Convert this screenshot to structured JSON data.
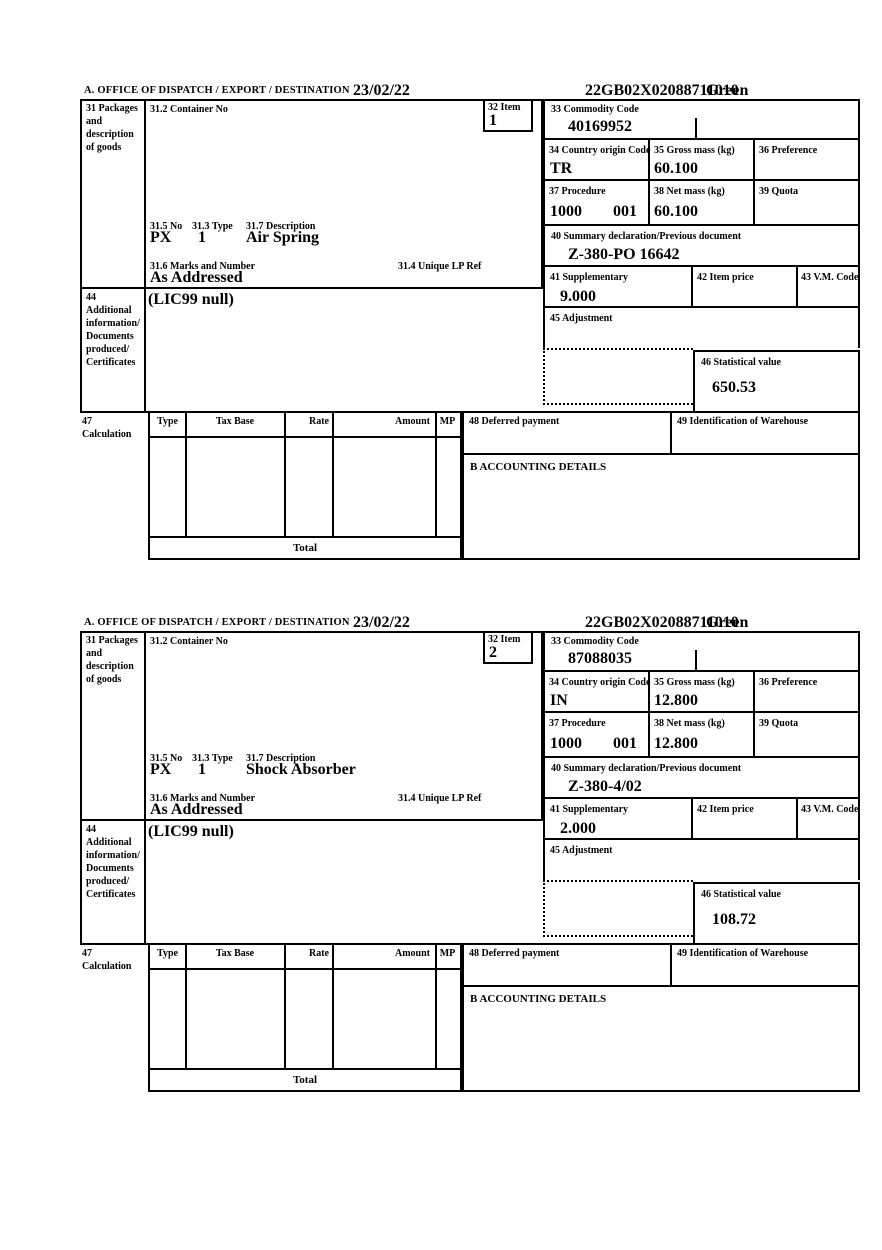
{
  "header": {
    "office_label": "A.  OFFICE OF DISPATCH / EXPORT / DESTINATION",
    "date": "23/02/22",
    "reference": "22GB02X02088711010",
    "routing": "Green"
  },
  "labels": {
    "box31": "31 Packages\nand\ndescription\nof goods",
    "box31_2": "31.2 Container No",
    "box32": "32 Item",
    "box33": "33 Commodity Code",
    "box34": "34 Country origin Code",
    "box35": "35 Gross mass (kg)",
    "box36": "36 Preference",
    "box37": "37 Procedure",
    "box38": "38 Net mass (kg)",
    "box39": "39 Quota",
    "box31_5": "31.5 No",
    "box31_3": "31.3 Type",
    "box31_7": "31.7 Description",
    "box31_6": "31.6 Marks and Number",
    "box31_4": "31.4 Unique LP Ref",
    "box40": "40 Summary declaration/Previous document",
    "box41": "41 Supplementary",
    "box42": "42 Item price",
    "box43": "43 V.M. Code",
    "box44": "44\nAdditional\ninformation/\nDocuments\nproduced/\nCertificates",
    "box45": "45 Adjustment",
    "box46": "46 Statistical value",
    "box47": "47\nCalculation",
    "box48": "48 Deferred payment",
    "box49": "49 Identification of Warehouse",
    "accounting": "B ACCOUNTING DETAILS",
    "total": "Total",
    "calc_columns": [
      "Type",
      "Tax Base",
      "Rate",
      "Amount",
      "MP"
    ]
  },
  "items": [
    {
      "item_number": "1",
      "commodity_code": "40169952",
      "country_origin": "TR",
      "gross_mass": "60.100",
      "procedure": "1000",
      "procedure_extra": "001",
      "net_mass": "60.100",
      "summary_declaration": "Z-380-PO 16642",
      "package_no": "PX",
      "package_type": "1",
      "description": "Air Spring",
      "marks": "As Addressed",
      "supplementary": "9.000",
      "additional_info": "(LIC99 null)",
      "statistical_value": "650.53"
    },
    {
      "item_number": "2",
      "commodity_code": "87088035",
      "country_origin": "IN",
      "gross_mass": "12.800",
      "procedure": "1000",
      "procedure_extra": "001",
      "net_mass": "12.800",
      "summary_declaration": "Z-380-4/02",
      "package_no": "PX",
      "package_type": "1",
      "description": "Shock Absorber",
      "marks": "As Addressed",
      "supplementary": "2.000",
      "additional_info": "(LIC99 null)",
      "statistical_value": "108.72"
    }
  ]
}
